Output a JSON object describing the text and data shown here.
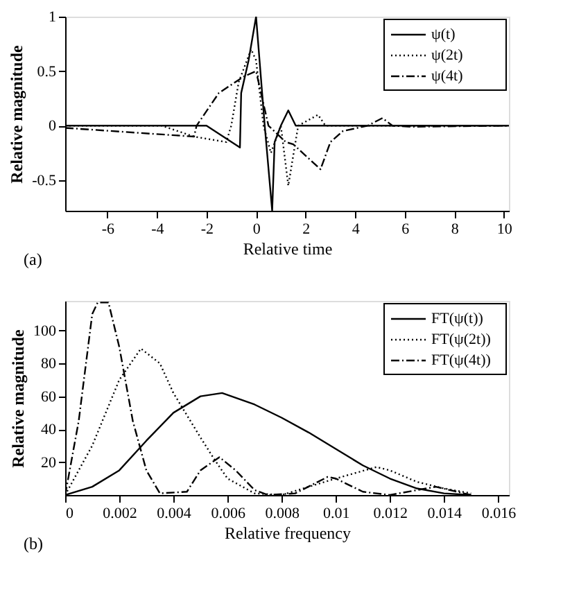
{
  "chart_data": [
    {
      "type": "line",
      "xlabel": "Relative time",
      "ylabel": "Relative magnitude",
      "annotations": [
        "(a)"
      ],
      "xlim": [
        -7.7,
        10.2
      ],
      "ylim": [
        -0.78,
        1
      ],
      "xticks": [
        -6,
        -4,
        -2,
        0,
        2,
        4,
        6,
        8,
        10
      ],
      "yticks": [
        -0.5,
        0,
        0.5,
        1
      ],
      "grid": false,
      "legend": "top right",
      "marker": "none",
      "series": [
        {
          "name": "ψ(t)",
          "color": "#000000",
          "line_style": "solid",
          "x": [
            -7.7,
            -2,
            -0.65,
            -0.6,
            -0.3,
            0,
            0.35,
            0.65,
            0.75,
            1.0,
            1.3,
            1.6,
            1.7,
            10.2
          ],
          "values": [
            0,
            0,
            -0.2,
            0.3,
            0.6,
            1.0,
            0,
            -0.78,
            -0.15,
            0,
            0.14,
            0,
            0,
            0
          ]
        },
        {
          "name": "ψ(2t)",
          "color": "#000000",
          "line_style": "dotted",
          "x": [
            -7.7,
            -3.8,
            -2.5,
            -1.2,
            -1.0,
            -0.7,
            -0.2,
            0,
            0.3,
            0.6,
            1.0,
            1.3,
            1.7,
            2.5,
            2.8,
            10.2
          ],
          "values": [
            0,
            0,
            -0.1,
            -0.15,
            0,
            0.4,
            0.7,
            0.6,
            0,
            -0.25,
            0,
            -0.55,
            0,
            0.1,
            0,
            0
          ]
        },
        {
          "name": "ψ(4t)",
          "color": "#000000",
          "line_style": "dashed",
          "x": [
            -7.7,
            -2.5,
            -2.4,
            -1.5,
            -0.5,
            0,
            0.5,
            1.2,
            1.5,
            2.6,
            3.0,
            3.5,
            4.5,
            5.1,
            5.5,
            6.3,
            10.2
          ],
          "values": [
            -0.02,
            -0.1,
            0,
            0.3,
            0.45,
            0.5,
            0,
            -0.15,
            -0.17,
            -0.4,
            -0.15,
            -0.05,
            0,
            0.07,
            0,
            -0.01,
            0
          ]
        }
      ]
    },
    {
      "type": "line",
      "xlabel": "Relative frequency",
      "ylabel": "Relative magnitude",
      "annotations": [
        "(b)"
      ],
      "xlim": [
        0,
        0.0164
      ],
      "ylim": [
        0,
        118
      ],
      "xticks": [
        0,
        0.002,
        0.004,
        0.006,
        0.008,
        0.01,
        0.012,
        0.014,
        0.016
      ],
      "yticks": [
        20,
        40,
        60,
        80,
        100
      ],
      "grid": false,
      "legend": "top right",
      "marker": "none",
      "series": [
        {
          "name": "FT(ψ(t))",
          "color": "#000000",
          "line_style": "solid",
          "x": [
            0,
            0.001,
            0.002,
            0.003,
            0.004,
            0.005,
            0.0058,
            0.007,
            0.008,
            0.009,
            0.01,
            0.011,
            0.012,
            0.013,
            0.014,
            0.015
          ],
          "values": [
            0,
            5,
            15,
            33,
            50,
            60,
            62,
            55,
            47,
            38,
            28,
            18,
            10,
            4,
            1,
            0
          ]
        },
        {
          "name": "FT(ψ(2t))",
          "color": "#000000",
          "line_style": "dotted",
          "x": [
            0,
            0.001,
            0.002,
            0.0028,
            0.0035,
            0.004,
            0.005,
            0.0055,
            0.006,
            0.007,
            0.008,
            0.009,
            0.01,
            0.0115,
            0.012,
            0.013,
            0.014,
            0.015
          ],
          "values": [
            0,
            30,
            70,
            89,
            80,
            62,
            35,
            22,
            10,
            1,
            0,
            5,
            10,
            17,
            15,
            8,
            4,
            1
          ]
        },
        {
          "name": "FT(ψ(4t))",
          "color": "#000000",
          "line_style": "dashed",
          "x": [
            0,
            0.0005,
            0.001,
            0.0012,
            0.0016,
            0.002,
            0.0025,
            0.003,
            0.0035,
            0.0045,
            0.005,
            0.0057,
            0.0063,
            0.007,
            0.0075,
            0.0085,
            0.0097,
            0.01,
            0.011,
            0.012,
            0.013,
            0.0137,
            0.015
          ],
          "values": [
            0,
            45,
            110,
            117,
            117,
            90,
            45,
            15,
            1,
            2,
            15,
            23,
            15,
            3,
            0,
            1,
            11,
            10,
            2,
            0,
            3,
            5,
            0
          ]
        }
      ]
    }
  ]
}
